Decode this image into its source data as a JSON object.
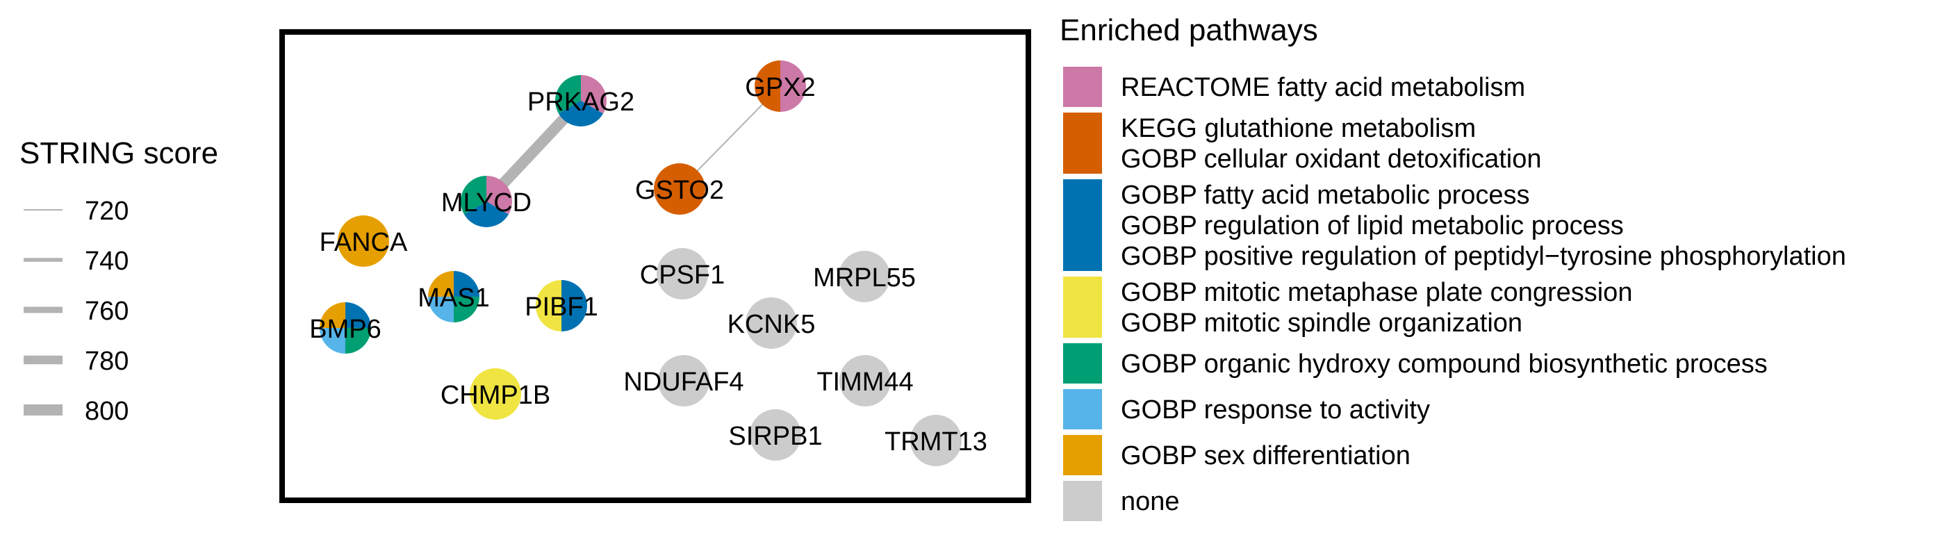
{
  "score_legend": {
    "title": "STRING score",
    "entries": [
      {
        "label": "720",
        "value": 720
      },
      {
        "label": "740",
        "value": 740
      },
      {
        "label": "760",
        "value": 760
      },
      {
        "label": "780",
        "value": 780
      },
      {
        "label": "800",
        "value": 800
      }
    ]
  },
  "pathway_legend": {
    "title": "Enriched pathways",
    "entries": [
      {
        "key": "reactome_fa",
        "color": "#CC79A7",
        "lines": [
          "REACTOME fatty acid metabolism"
        ]
      },
      {
        "key": "kegg_gsh",
        "color": "#D55E00",
        "lines": [
          "KEGG glutathione metabolism",
          "GOBP cellular oxidant detoxification"
        ]
      },
      {
        "key": "gobp_fa",
        "color": "#0072B2",
        "lines": [
          "GOBP fatty acid metabolic process",
          "GOBP regulation of lipid metabolic process",
          "GOBP positive regulation of peptidyl−tyrosine phosphorylation"
        ]
      },
      {
        "key": "gobp_mitotic",
        "color": "#F0E442",
        "lines": [
          "GOBP mitotic metaphase plate congression",
          "GOBP mitotic spindle organization"
        ]
      },
      {
        "key": "gobp_hydroxy",
        "color": "#009E73",
        "lines": [
          "GOBP organic hydroxy compound biosynthetic process"
        ]
      },
      {
        "key": "gobp_activity",
        "color": "#56B4E9",
        "lines": [
          "GOBP response to activity"
        ]
      },
      {
        "key": "gobp_sex",
        "color": "#E69F00",
        "lines": [
          "GOBP sex differentiation"
        ]
      },
      {
        "key": "none",
        "color": "#CCCCCC",
        "lines": [
          "none"
        ]
      }
    ]
  },
  "network": {
    "nodes": [
      {
        "id": "PRKAG2",
        "pathways": [
          "reactome_fa",
          "gobp_fa",
          "gobp_hydroxy"
        ]
      },
      {
        "id": "GPX2",
        "pathways": [
          "reactome_fa",
          "kegg_gsh"
        ]
      },
      {
        "id": "MLYCD",
        "pathways": [
          "reactome_fa",
          "gobp_fa",
          "gobp_hydroxy"
        ]
      },
      {
        "id": "GSTO2",
        "pathways": [
          "kegg_gsh"
        ]
      },
      {
        "id": "FANCA",
        "pathways": [
          "gobp_sex"
        ]
      },
      {
        "id": "MAS1",
        "pathways": [
          "gobp_fa",
          "gobp_hydroxy",
          "gobp_activity",
          "gobp_sex"
        ]
      },
      {
        "id": "PIBF1",
        "pathways": [
          "gobp_fa",
          "gobp_mitotic"
        ]
      },
      {
        "id": "BMP6",
        "pathways": [
          "gobp_fa",
          "gobp_hydroxy",
          "gobp_activity",
          "gobp_sex"
        ]
      },
      {
        "id": "CHMP1B",
        "pathways": [
          "gobp_mitotic"
        ]
      },
      {
        "id": "CPSF1",
        "pathways": [
          "none"
        ]
      },
      {
        "id": "MRPL55",
        "pathways": [
          "none"
        ]
      },
      {
        "id": "KCNK5",
        "pathways": [
          "none"
        ]
      },
      {
        "id": "NDUFAF4",
        "pathways": [
          "none"
        ]
      },
      {
        "id": "TIMM44",
        "pathways": [
          "none"
        ]
      },
      {
        "id": "SIRPB1",
        "pathways": [
          "none"
        ]
      },
      {
        "id": "TRMT13",
        "pathways": [
          "none"
        ]
      }
    ],
    "edges": [
      {
        "source": "PRKAG2",
        "target": "MLYCD",
        "score": 800
      },
      {
        "source": "GPX2",
        "target": "GSTO2",
        "score": 720
      }
    ]
  }
}
